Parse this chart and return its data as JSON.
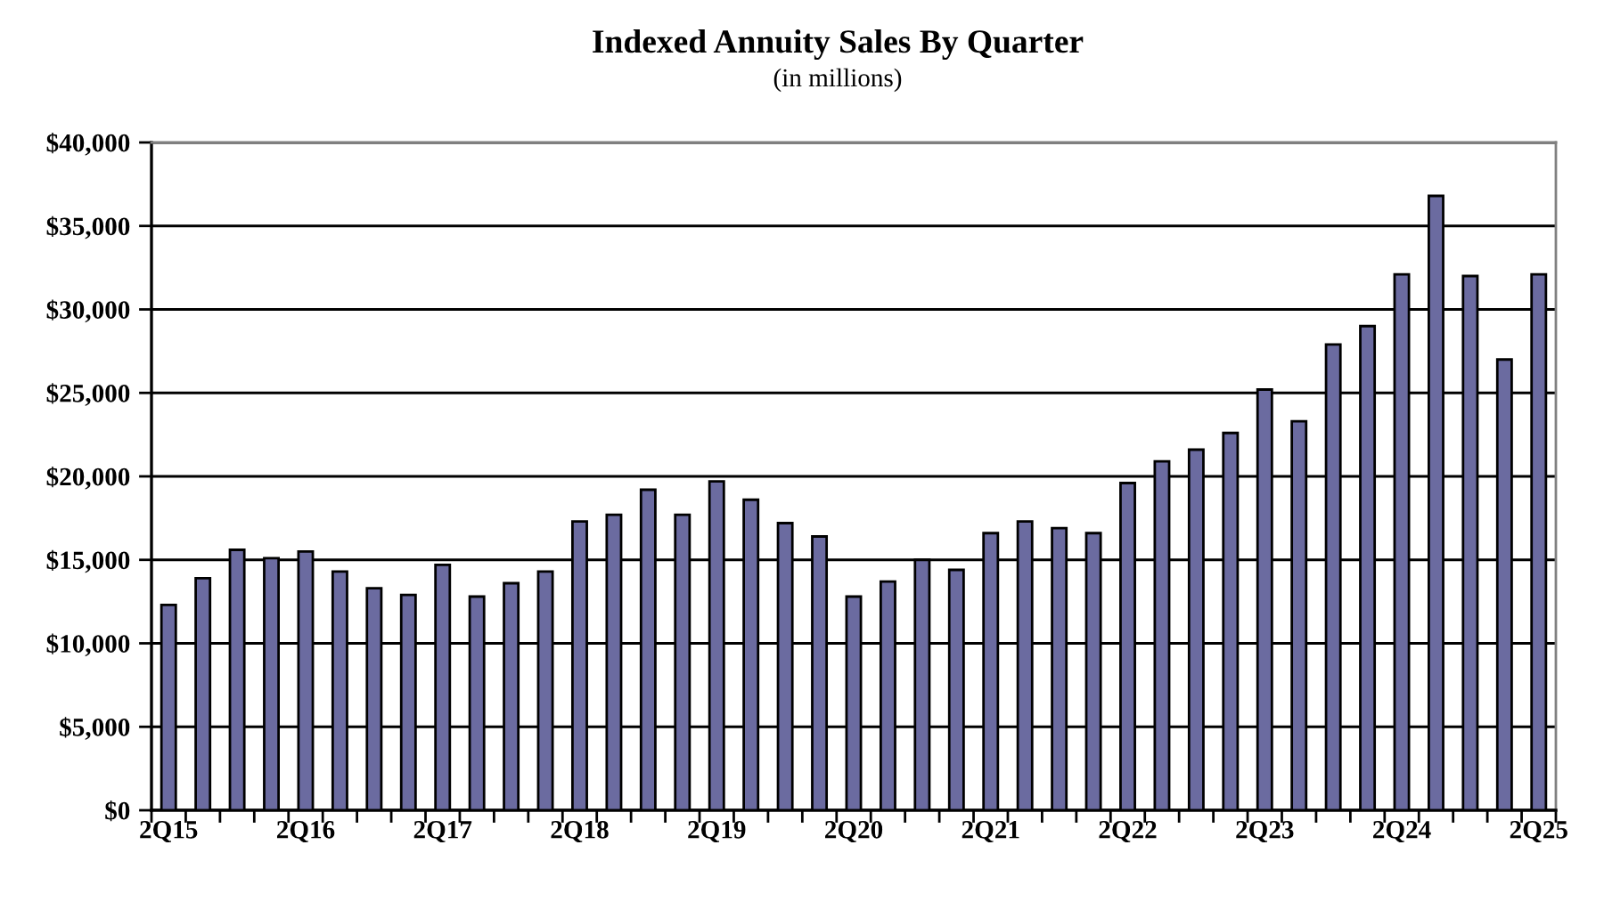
{
  "chart_data": {
    "type": "bar",
    "title": "Indexed Annuity Sales By Quarter",
    "subtitle": "(in millions)",
    "categories": [
      "2Q15",
      null,
      null,
      null,
      "2Q16",
      null,
      null,
      null,
      "2Q17",
      null,
      null,
      null,
      "2Q18",
      null,
      null,
      null,
      "2Q19",
      null,
      null,
      null,
      "2Q20",
      null,
      null,
      null,
      "2Q21",
      null,
      null,
      null,
      "2Q22",
      null,
      null,
      null,
      "2Q23",
      null,
      null,
      null,
      "2Q24",
      null,
      null,
      null,
      "2Q25"
    ],
    "values": [
      12300,
      13900,
      15600,
      15100,
      15500,
      14300,
      13300,
      12900,
      14700,
      12800,
      13600,
      14300,
      17300,
      17700,
      19200,
      17700,
      19700,
      18600,
      17200,
      16400,
      12800,
      13700,
      15000,
      14400,
      16600,
      17300,
      16900,
      16600,
      19600,
      20900,
      21600,
      22600,
      25200,
      23300,
      27900,
      29000,
      32100,
      36800,
      32000,
      27000,
      32100
    ],
    "color": "#6b6ba0",
    "ylim": [
      0,
      40000
    ],
    "yticks": [
      {
        "value": 0,
        "label": "$0"
      },
      {
        "value": 5000,
        "label": "$5,000"
      },
      {
        "value": 10000,
        "label": "$10,000"
      },
      {
        "value": 15000,
        "label": "$15,000"
      },
      {
        "value": 20000,
        "label": "$20,000"
      },
      {
        "value": 25000,
        "label": "$25,000"
      },
      {
        "value": 30000,
        "label": "$30,000"
      },
      {
        "value": 35000,
        "label": "$35,000"
      },
      {
        "value": 40000,
        "label": "$40,000"
      }
    ],
    "grid": "y"
  }
}
